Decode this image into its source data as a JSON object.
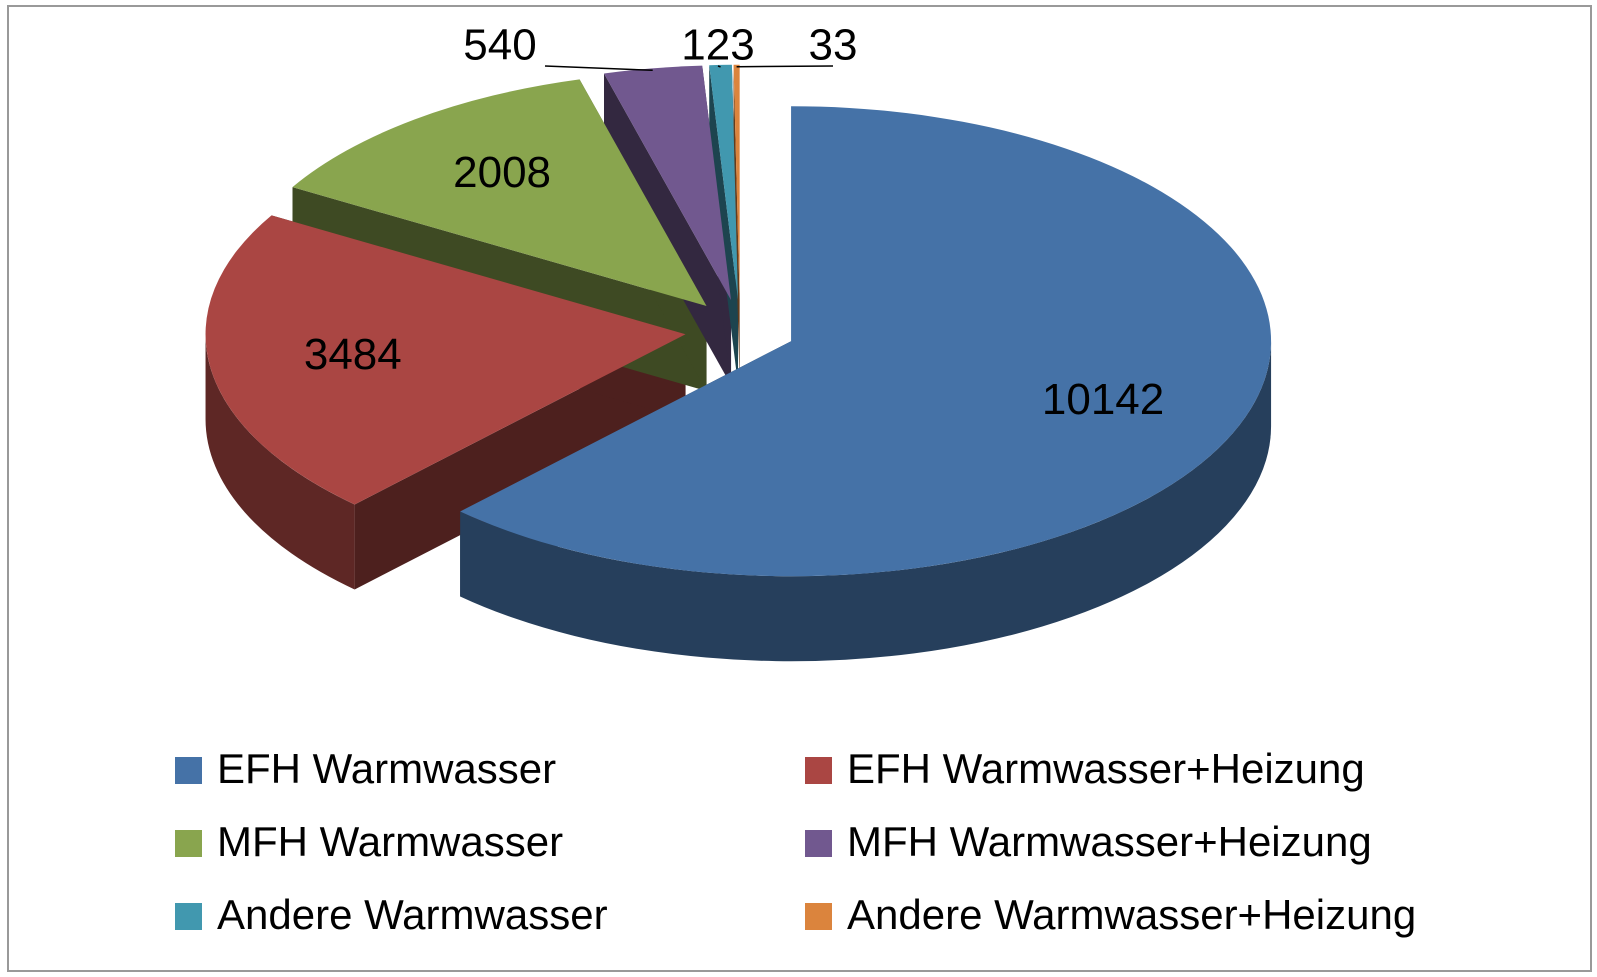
{
  "chart_data": {
    "type": "pie3d",
    "categories": [
      "EFH Warmwasser",
      "EFH Warmwasser+Heizung",
      "MFH Warmwasser",
      "MFH Warmwasser+Heizung",
      "Andere Warmwasser",
      "Andere Warmwasser+Heizung"
    ],
    "values": [
      10142,
      3484,
      2008,
      540,
      123,
      33
    ],
    "colors": [
      "#4572a7",
      "#aa4643",
      "#89a54e",
      "#71588f",
      "#4198af",
      "#db843d"
    ],
    "legend": "bottom"
  }
}
